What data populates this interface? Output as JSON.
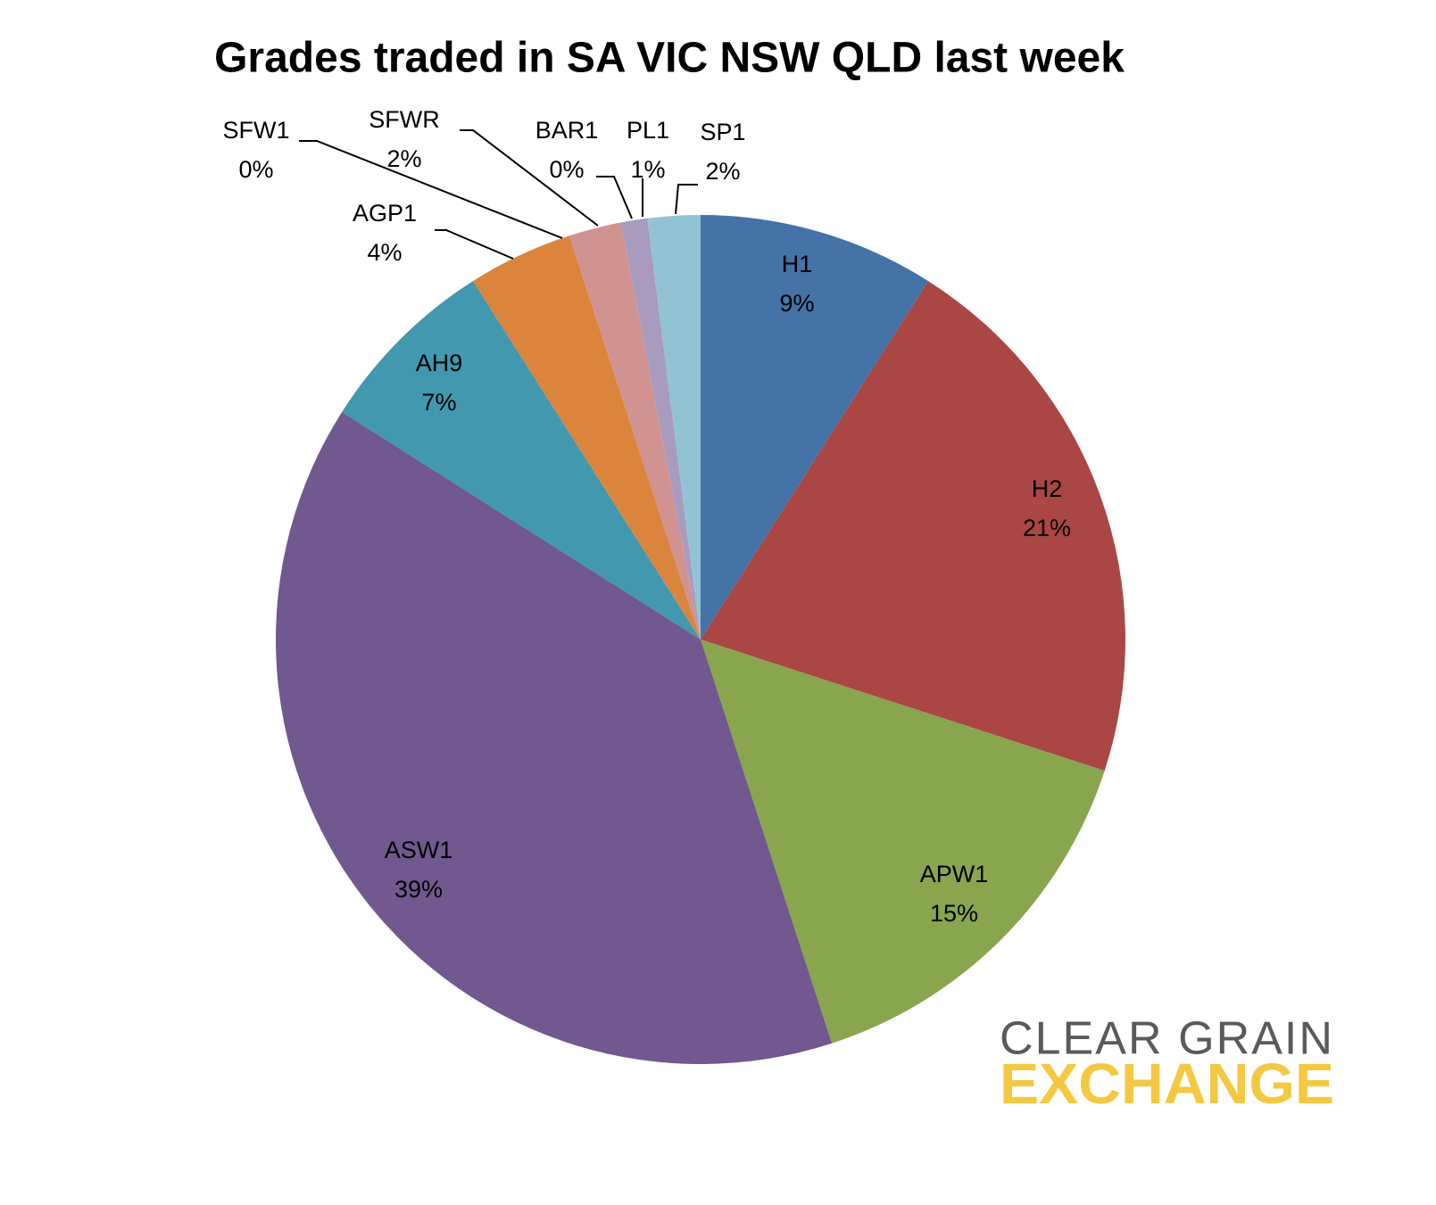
{
  "chart_data": {
    "type": "pie",
    "title": "Grades traded in SA VIC NSW QLD last week",
    "categories": [
      "H1",
      "H2",
      "APW1",
      "ASW1",
      "AH9",
      "AGP1",
      "SFW1",
      "SFWR",
      "BAR1",
      "PL1",
      "SP1"
    ],
    "values": [
      9,
      21,
      15,
      39,
      7,
      4,
      0,
      2,
      0,
      1,
      2
    ],
    "value_labels": [
      "9%",
      "21%",
      "15%",
      "39%",
      "7%",
      "4%",
      "0%",
      "2%",
      "0%",
      "1%",
      "2%"
    ],
    "colors": [
      "#4572a7",
      "#aa4643",
      "#89a54e",
      "#71588f",
      "#4198af",
      "#db843d",
      "#93a9cf",
      "#d19392",
      "#b9cd96",
      "#a99bbd",
      "#92c3d5"
    ]
  },
  "logo": {
    "line1": "CLEAR GRAIN",
    "line2": "EXCHANGE"
  }
}
